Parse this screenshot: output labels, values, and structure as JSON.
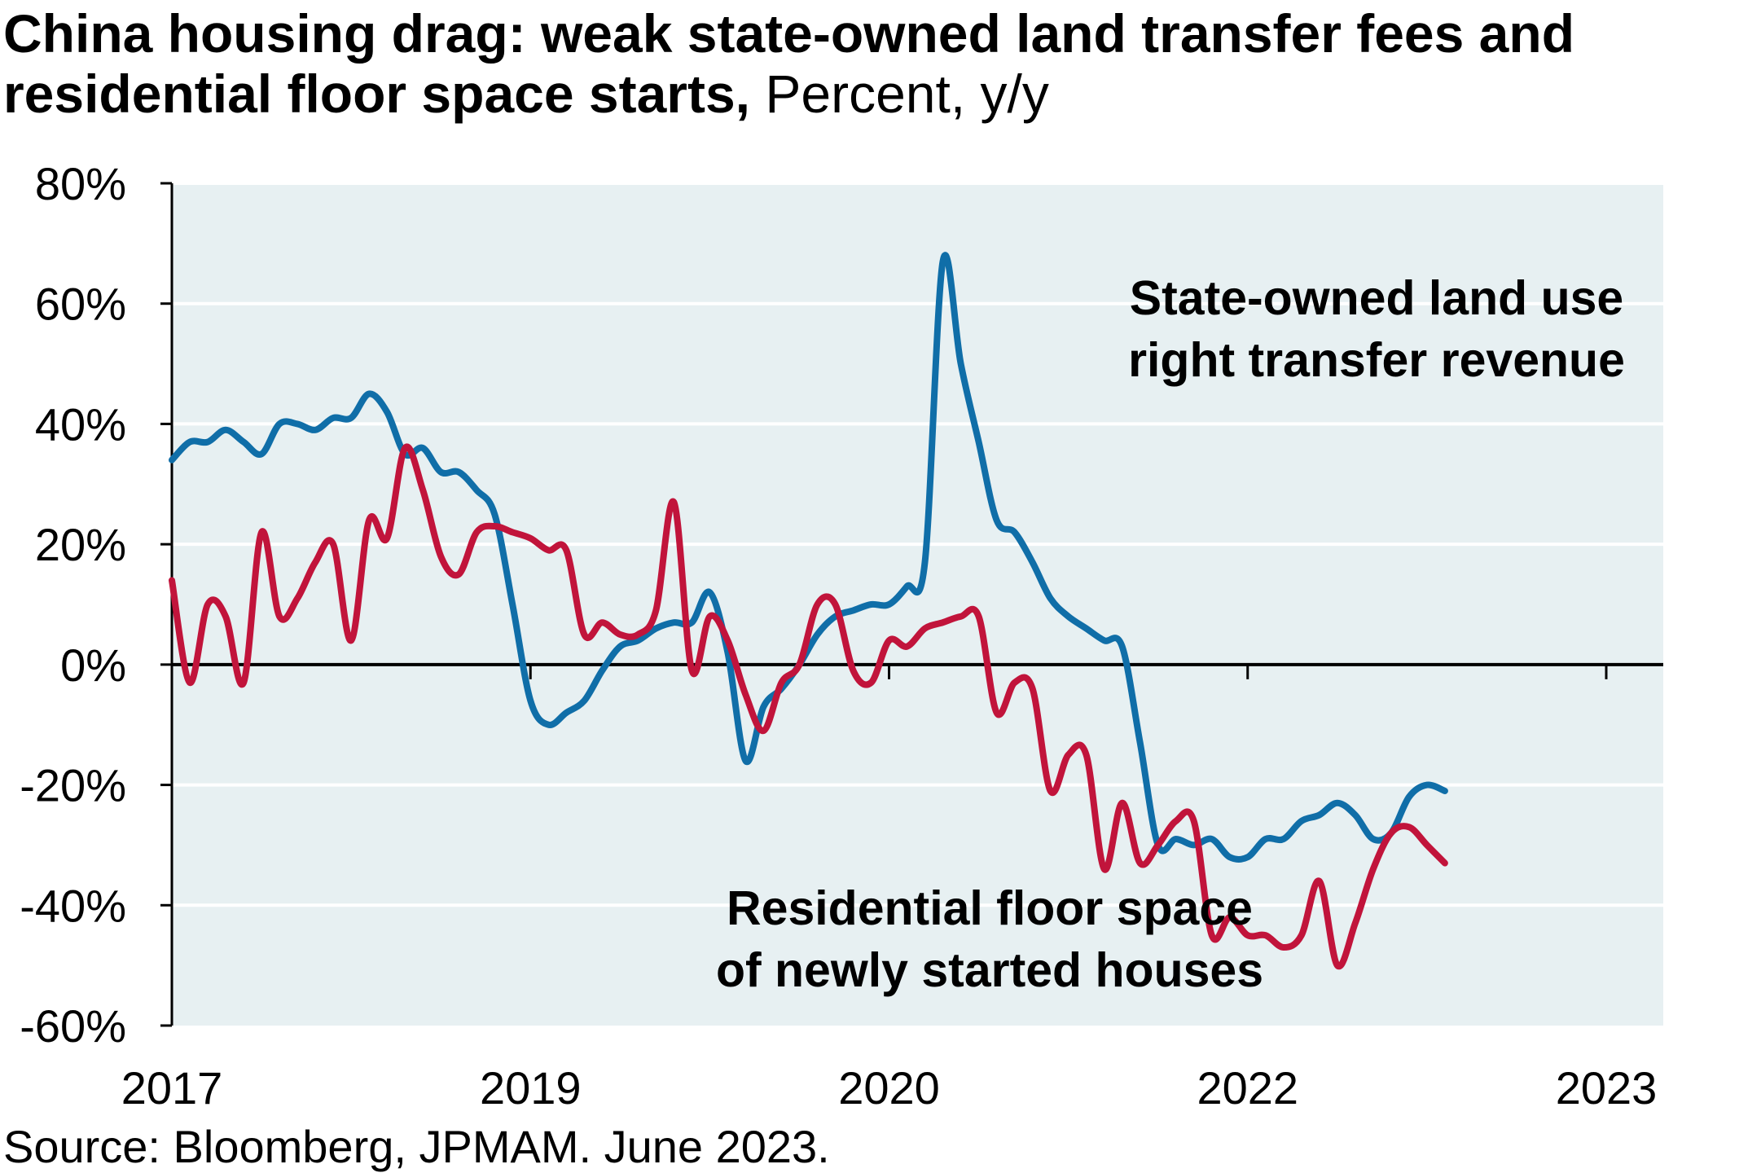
{
  "title": {
    "main": "China housing drag: weak state-owned land transfer fees and residential floor space starts,",
    "units": "Percent, y/y"
  },
  "source": "Source: Bloomberg, JPMAM. June 2023.",
  "colors": {
    "background": "#e7f0f2",
    "land": "#106ea8",
    "floor": "#c1143b",
    "gridline": "#ffffff"
  },
  "chart_data": {
    "type": "line",
    "x_axis": {
      "tick_labels": [
        "2017",
        "2019",
        "2020",
        "2022",
        "2023"
      ],
      "range": [
        0,
        80
      ]
    },
    "y_axis": {
      "range": [
        -60,
        80
      ],
      "ticks": [
        80,
        60,
        40,
        20,
        0,
        -20,
        -40,
        -60
      ],
      "tick_labels": [
        "80%",
        "60%",
        "40%",
        "20%",
        "0%",
        "-20%",
        "-40%",
        "-60%"
      ]
    },
    "grid": "horizontal",
    "series": [
      {
        "name_lines": [
          "State-owned land use",
          "right transfer revenue"
        ],
        "color": "#106ea8",
        "points": [
          [
            0,
            34
          ],
          [
            1,
            37
          ],
          [
            2,
            37
          ],
          [
            3,
            39
          ],
          [
            4,
            37
          ],
          [
            5,
            35
          ],
          [
            6,
            40
          ],
          [
            7,
            40
          ],
          [
            8,
            39
          ],
          [
            9,
            41
          ],
          [
            10,
            41
          ],
          [
            11,
            45
          ],
          [
            12,
            42
          ],
          [
            13,
            35
          ],
          [
            14,
            36
          ],
          [
            15,
            32
          ],
          [
            16,
            32
          ],
          [
            17,
            29
          ],
          [
            18,
            25
          ],
          [
            19,
            10
          ],
          [
            20,
            -6
          ],
          [
            21,
            -10
          ],
          [
            22,
            -8
          ],
          [
            23,
            -6
          ],
          [
            24,
            -1
          ],
          [
            25,
            3
          ],
          [
            26,
            4
          ],
          [
            27,
            6
          ],
          [
            28,
            7
          ],
          [
            29,
            7
          ],
          [
            30,
            12
          ],
          [
            31,
            2
          ],
          [
            32,
            -16
          ],
          [
            33,
            -7
          ],
          [
            34,
            -4
          ],
          [
            35,
            0
          ],
          [
            36,
            5
          ],
          [
            37,
            8
          ],
          [
            38,
            9
          ],
          [
            39,
            10
          ],
          [
            40,
            10
          ],
          [
            41,
            13
          ],
          [
            42,
            17
          ],
          [
            43,
            67
          ],
          [
            44,
            50
          ],
          [
            45,
            37
          ],
          [
            46,
            24
          ],
          [
            47,
            22
          ],
          [
            48,
            17
          ],
          [
            49,
            11
          ],
          [
            50,
            8
          ],
          [
            51,
            6
          ],
          [
            52,
            4
          ],
          [
            53,
            3
          ],
          [
            54,
            -13
          ],
          [
            55,
            -30
          ],
          [
            56,
            -29
          ],
          [
            57,
            -30
          ],
          [
            58,
            -29
          ],
          [
            59,
            -32
          ],
          [
            60,
            -32
          ],
          [
            61,
            -29
          ],
          [
            62,
            -29
          ],
          [
            63,
            -26
          ],
          [
            64,
            -25
          ],
          [
            65,
            -23
          ],
          [
            66,
            -25
          ],
          [
            67,
            -29
          ],
          [
            68,
            -28
          ],
          [
            69,
            -22
          ],
          [
            70,
            -20
          ],
          [
            71,
            -21
          ]
        ]
      },
      {
        "name_lines": [
          "Residential floor space",
          "of newly started houses"
        ],
        "color": "#c1143b",
        "points": [
          [
            0,
            14
          ],
          [
            1,
            -3
          ],
          [
            2,
            10
          ],
          [
            3,
            8
          ],
          [
            4,
            -3
          ],
          [
            5,
            22
          ],
          [
            6,
            8
          ],
          [
            7,
            11
          ],
          [
            8,
            17
          ],
          [
            9,
            20
          ],
          [
            10,
            4
          ],
          [
            11,
            24
          ],
          [
            12,
            21
          ],
          [
            13,
            36
          ],
          [
            14,
            29
          ],
          [
            15,
            18
          ],
          [
            16,
            15
          ],
          [
            17,
            22
          ],
          [
            18,
            23
          ],
          [
            19,
            22
          ],
          [
            20,
            21
          ],
          [
            21,
            19
          ],
          [
            22,
            19
          ],
          [
            23,
            5
          ],
          [
            24,
            7
          ],
          [
            25,
            5
          ],
          [
            26,
            5
          ],
          [
            27,
            9
          ],
          [
            28,
            27
          ],
          [
            29,
            -1
          ],
          [
            30,
            8
          ],
          [
            31,
            4
          ],
          [
            32,
            -5
          ],
          [
            33,
            -11
          ],
          [
            34,
            -3
          ],
          [
            35,
            0
          ],
          [
            36,
            10
          ],
          [
            37,
            10
          ],
          [
            38,
            -1
          ],
          [
            39,
            -3
          ],
          [
            40,
            4
          ],
          [
            41,
            3
          ],
          [
            42,
            6
          ],
          [
            43,
            7
          ],
          [
            44,
            8
          ],
          [
            45,
            8
          ],
          [
            46,
            -8
          ],
          [
            47,
            -3
          ],
          [
            48,
            -4
          ],
          [
            49,
            -21
          ],
          [
            50,
            -15
          ],
          [
            51,
            -15
          ],
          [
            52,
            -34
          ],
          [
            53,
            -23
          ],
          [
            54,
            -33
          ],
          [
            55,
            -30
          ],
          [
            56,
            -26
          ],
          [
            57,
            -26
          ],
          [
            58,
            -45
          ],
          [
            59,
            -42
          ],
          [
            60,
            -45
          ],
          [
            61,
            -45
          ],
          [
            62,
            -47
          ],
          [
            63,
            -45
          ],
          [
            64,
            -36
          ],
          [
            65,
            -50
          ],
          [
            66,
            -43
          ],
          [
            67,
            -34
          ],
          [
            68,
            -28
          ],
          [
            69,
            -27
          ],
          [
            70,
            -30
          ],
          [
            71,
            -33
          ]
        ]
      }
    ]
  }
}
